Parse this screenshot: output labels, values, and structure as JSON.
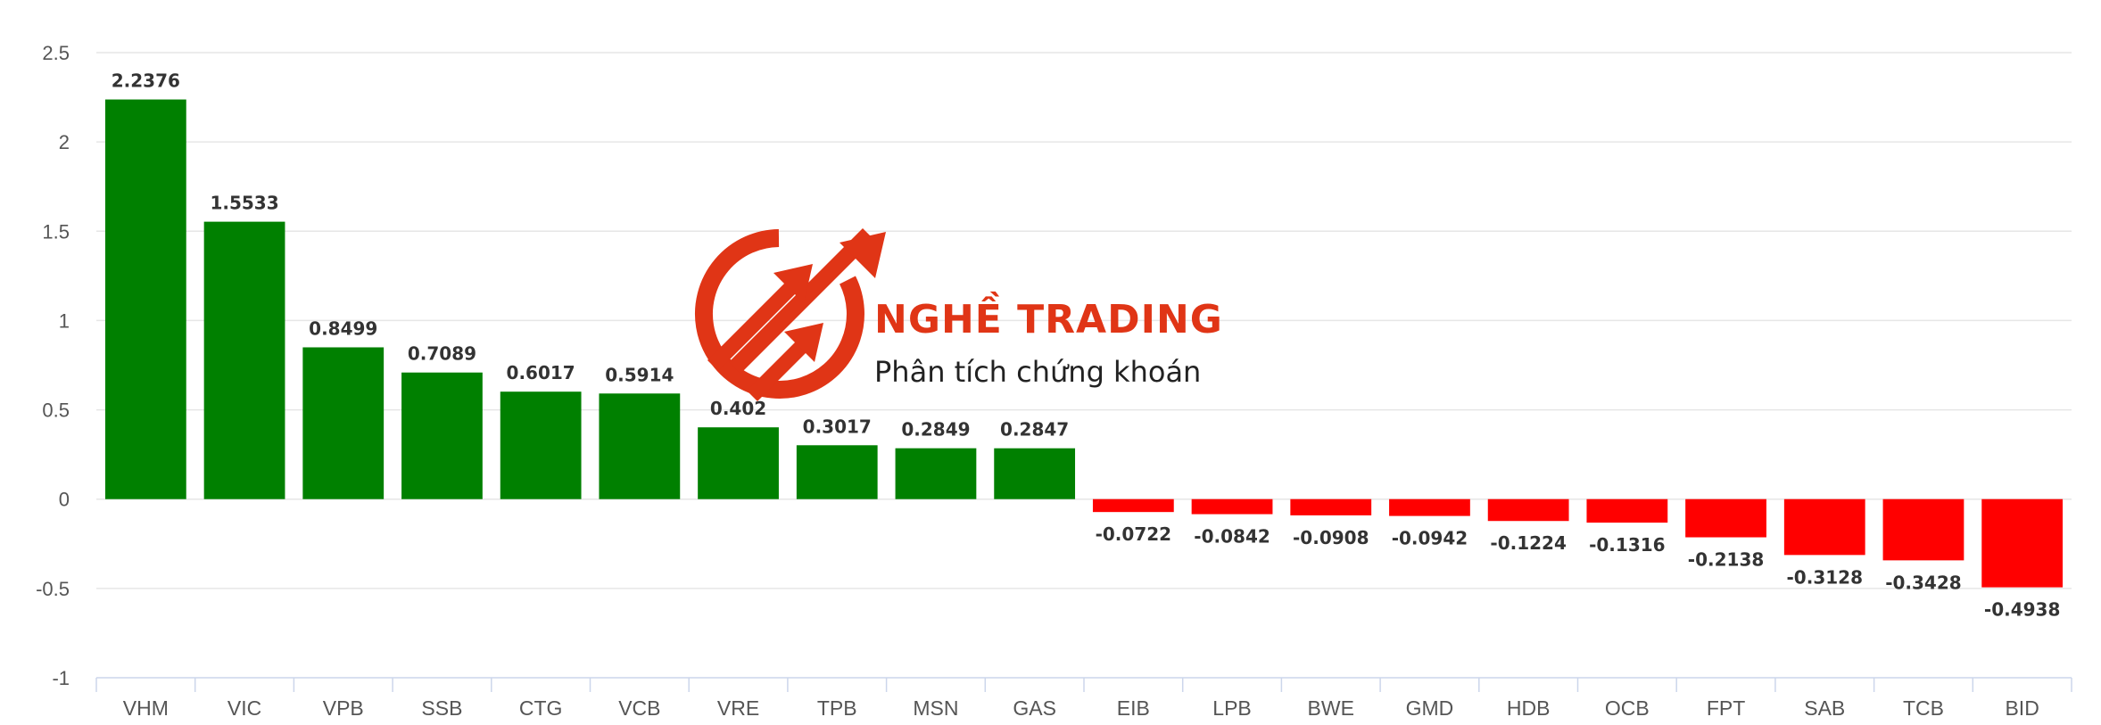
{
  "chart_data": {
    "type": "bar",
    "categories": [
      "VHM",
      "VIC",
      "VPB",
      "SSB",
      "CTG",
      "VCB",
      "VRE",
      "TPB",
      "MSN",
      "GAS",
      "EIB",
      "LPB",
      "BWE",
      "GMD",
      "HDB",
      "OCB",
      "FPT",
      "SAB",
      "TCB",
      "BID"
    ],
    "values": [
      2.2376,
      1.5533,
      0.8499,
      0.7089,
      0.6017,
      0.5914,
      0.402,
      0.3017,
      0.2849,
      0.2847,
      -0.0722,
      -0.0842,
      -0.0908,
      -0.0942,
      -0.1224,
      -0.1316,
      -0.2138,
      -0.3128,
      -0.3428,
      -0.4938
    ],
    "labels": [
      "2.2376",
      "1.5533",
      "0.8499",
      "0.7089",
      "0.6017",
      "0.5914",
      "0.402",
      "0.3017",
      "0.2849",
      "0.2847",
      "-0.0722",
      "-0.0842",
      "-0.0908",
      "-0.0942",
      "-0.1224",
      "-0.1316",
      "-0.2138",
      "-0.3128",
      "-0.3428",
      "-0.4938"
    ],
    "ylim": [
      -1,
      2.5
    ],
    "y_ticks": [
      2.5,
      2,
      1.5,
      1,
      0.5,
      0,
      -0.5,
      -1
    ],
    "y_tick_labels": [
      "2.5",
      "2",
      "1.5",
      "1",
      "0.5",
      "0",
      "-0.5",
      "-1"
    ],
    "grid": true,
    "colors": {
      "positive": "#008000",
      "negative": "#ff0000",
      "grid": "#e6e6e6",
      "axis": "#ccd6eb"
    }
  },
  "watermark": {
    "brand": "NGHỀ TRADING",
    "tagline": "Phân tích chứng khoán",
    "color": "#e03516",
    "icon": "rising-arrows-circle-logo"
  }
}
